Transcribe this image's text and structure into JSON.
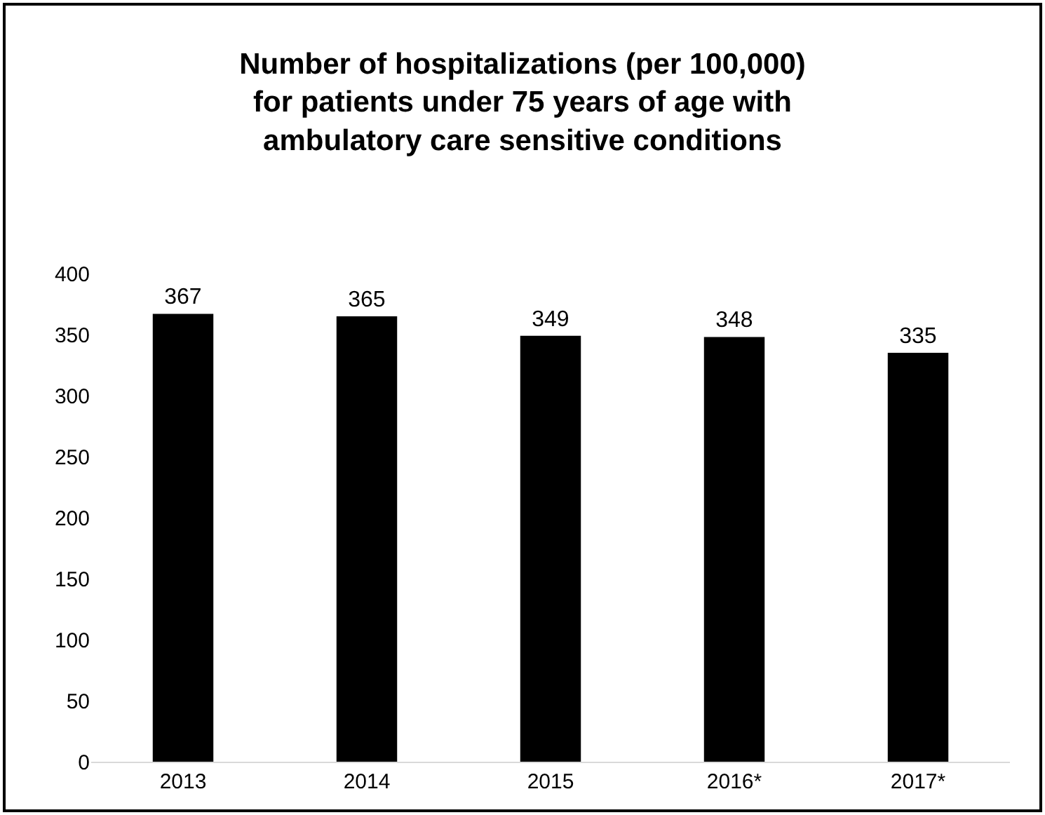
{
  "chart_data": {
    "type": "bar",
    "title": "Number of hospitalizations (per 100,000)\nfor patients under 75 years of age with\nambulatory care sensitive conditions",
    "categories": [
      "2013",
      "2014",
      "2015",
      "2016*",
      "2017*"
    ],
    "values": [
      367,
      365,
      349,
      348,
      335
    ],
    "color": "#000000",
    "ylim": [
      0,
      400
    ],
    "yticks": [
      0,
      50,
      100,
      150,
      200,
      250,
      300,
      350,
      400
    ],
    "legend": false,
    "data_labels": true
  }
}
